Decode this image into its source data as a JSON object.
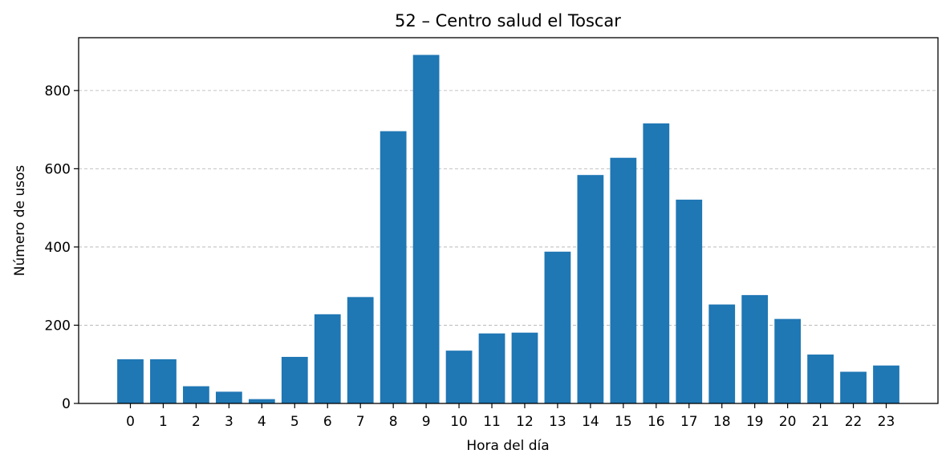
{
  "chart_data": {
    "type": "bar",
    "title": "52 – Centro salud el Toscar",
    "xlabel": "Hora del día",
    "ylabel": "Número de usos",
    "categories": [
      "0",
      "1",
      "2",
      "3",
      "4",
      "5",
      "6",
      "7",
      "8",
      "9",
      "10",
      "11",
      "12",
      "13",
      "14",
      "15",
      "16",
      "17",
      "18",
      "19",
      "20",
      "21",
      "22",
      "23"
    ],
    "values": [
      113,
      113,
      44,
      30,
      11,
      119,
      228,
      272,
      696,
      891,
      135,
      179,
      181,
      388,
      584,
      628,
      716,
      521,
      253,
      277,
      216,
      125,
      81,
      97
    ],
    "ylim": [
      0,
      935
    ],
    "yticks": [
      0,
      200,
      400,
      600,
      800
    ],
    "grid": "horizontal dashed",
    "bar_color": "#1f77b4"
  }
}
